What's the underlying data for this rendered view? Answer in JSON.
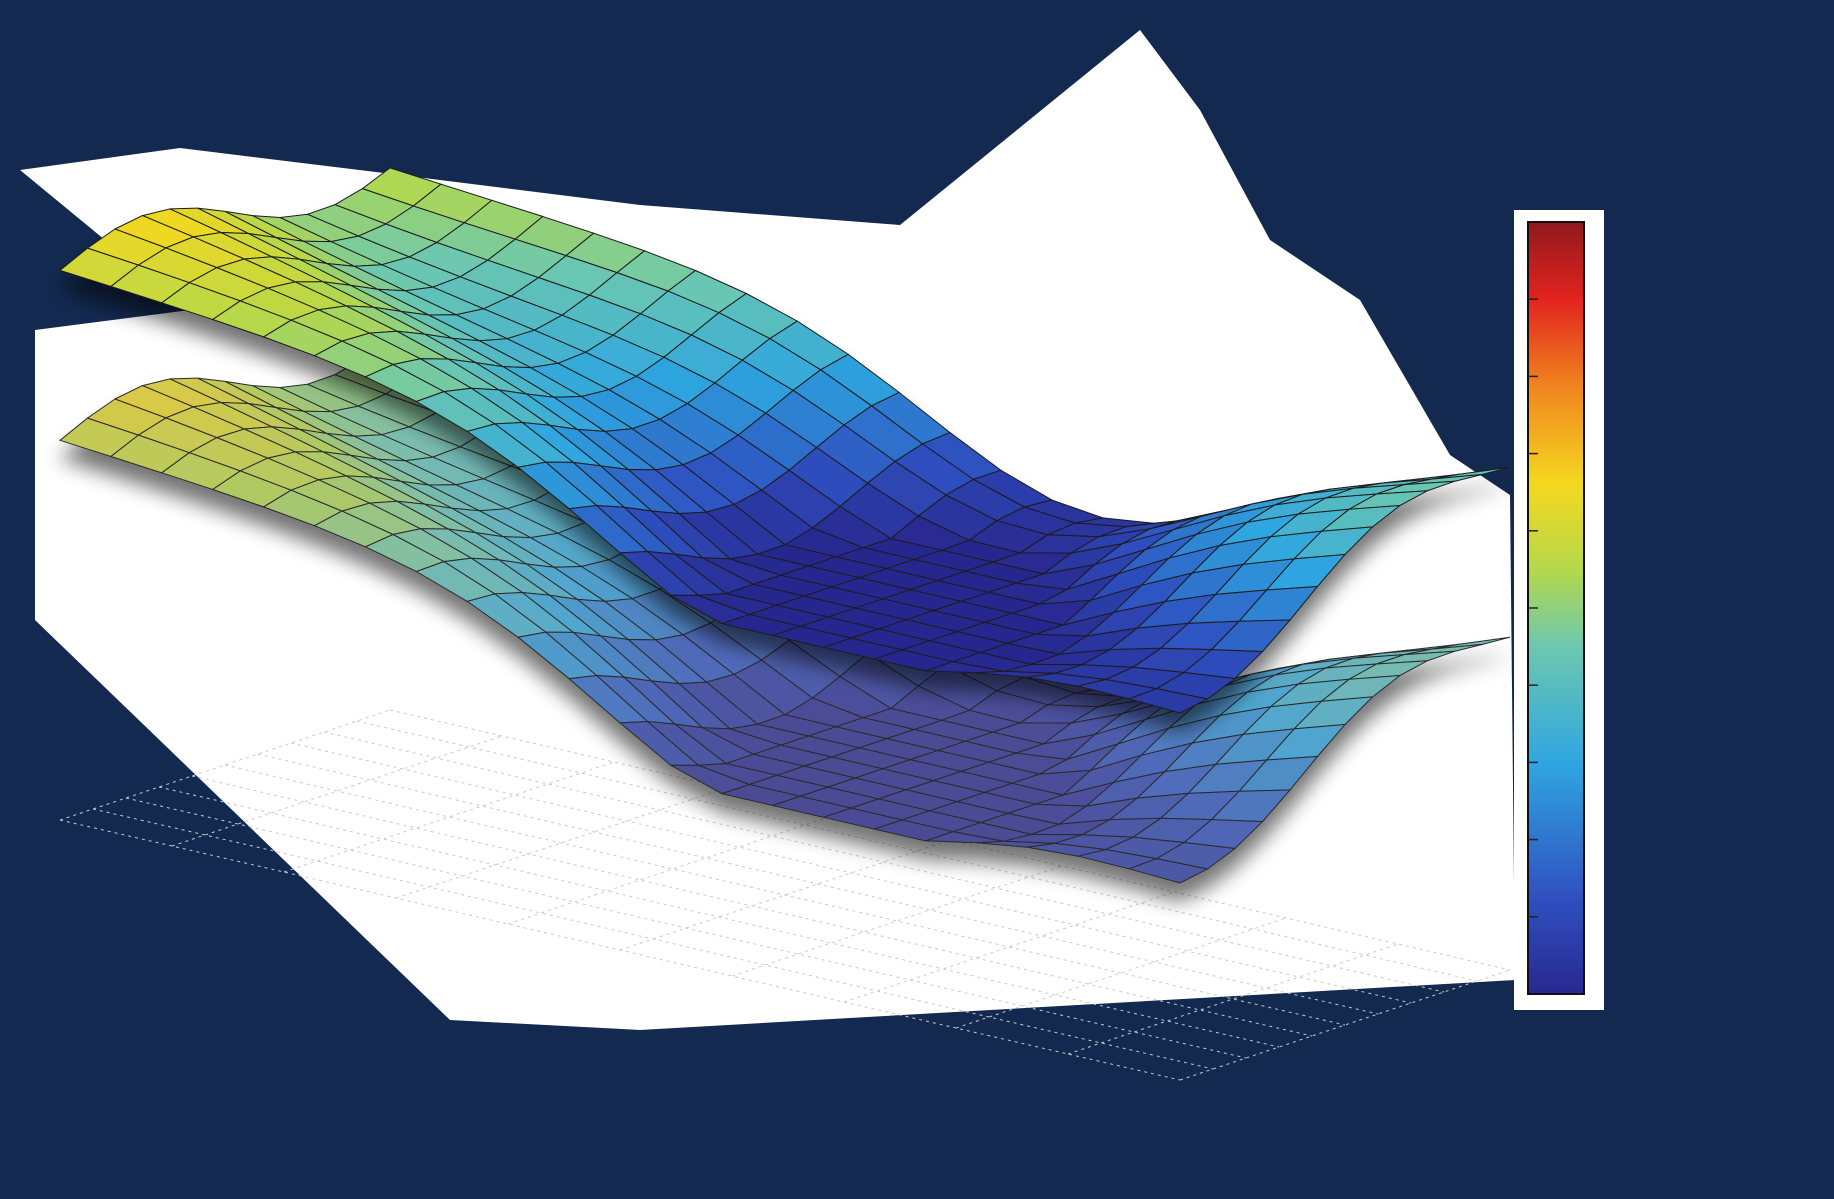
{
  "background": "#13294f",
  "chart_data": {
    "type": "surface",
    "title": "",
    "xlabel": "",
    "ylabel": "",
    "zlabel": "",
    "grid": true,
    "colormap": "jet",
    "colorbar": "right",
    "series": [
      {
        "grid_size": [
          22,
          12
        ],
        "style": "opaque",
        "z_range": [
          0,
          1
        ]
      },
      {
        "grid_size": [
          22,
          12
        ],
        "style": "faded",
        "z_range": [
          0,
          1
        ]
      }
    ],
    "colorbar_range": [
      0,
      1
    ]
  }
}
